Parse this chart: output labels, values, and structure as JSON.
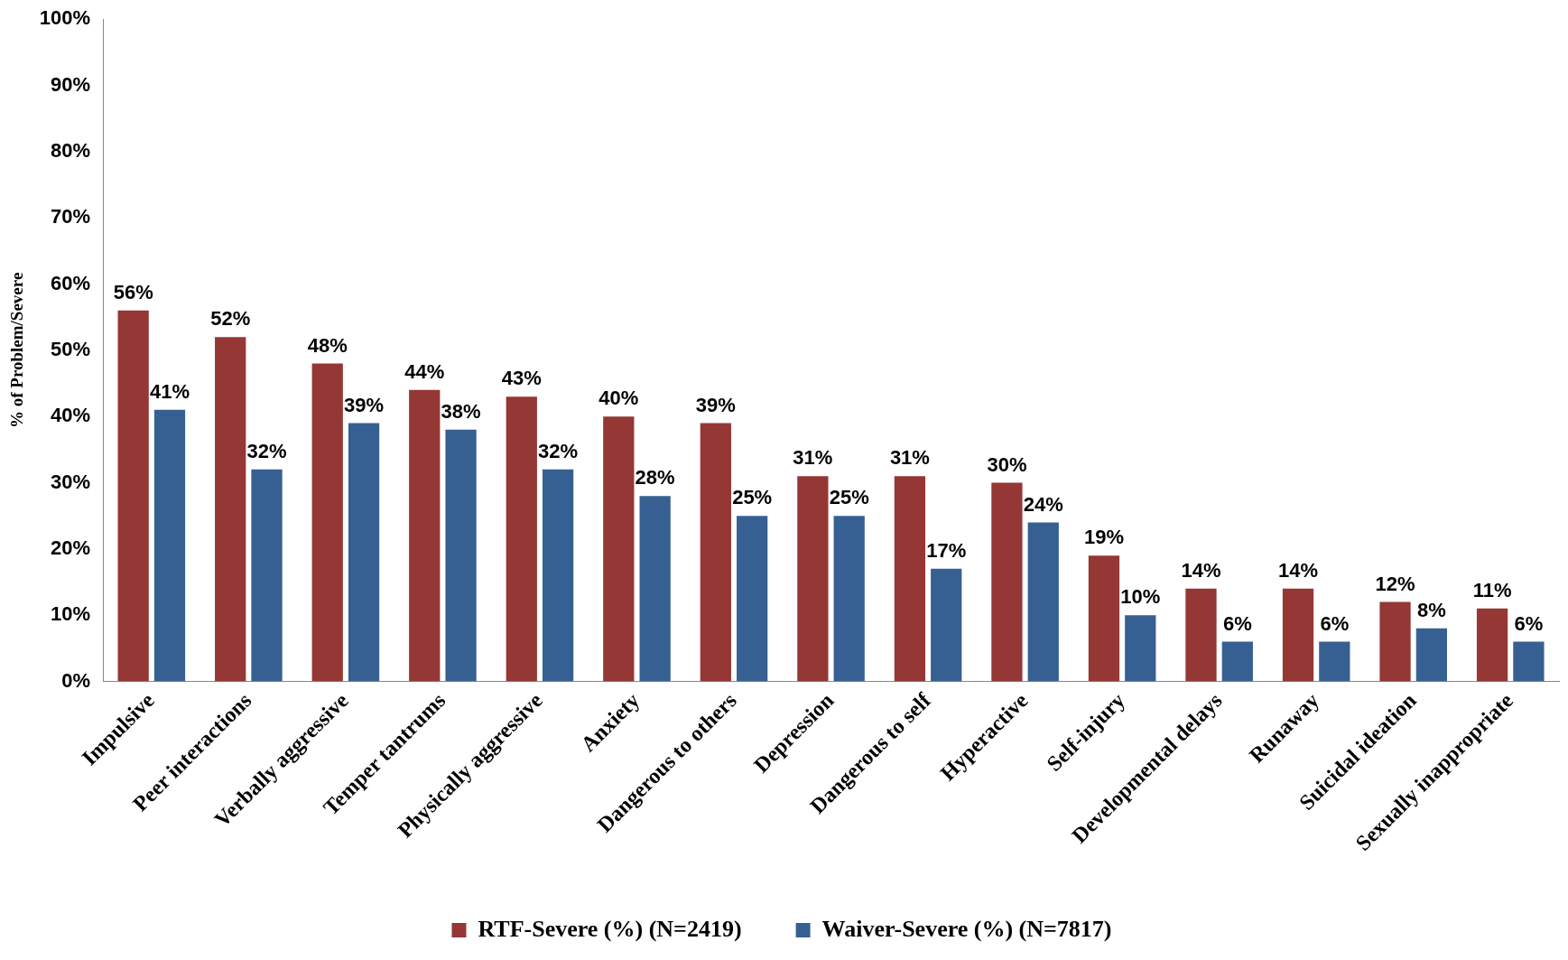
{
  "chart_data": {
    "type": "bar",
    "ylabel": "% of Problem/Severe",
    "categories": [
      "Impulsive",
      "Peer interactions",
      "Verbally aggressive",
      "Temper tantrums",
      "Physically aggressive",
      "Anxiety",
      "Dangerous to others",
      "Depression",
      "Dangerous to self",
      "Hyperactive",
      "Self-injury",
      "Developmental delays",
      "Runaway",
      "Suicidal ideation",
      "Sexually inappropriate"
    ],
    "series": [
      {
        "name": "RTF-Severe (%) (N=2419)",
        "color": "#953735",
        "values": [
          56,
          52,
          48,
          44,
          43,
          40,
          39,
          31,
          31,
          30,
          19,
          14,
          14,
          12,
          11
        ],
        "value_labels": [
          "56%",
          "52%",
          "48%",
          "44%",
          "43%",
          "40%",
          "39%",
          "31%",
          "31%",
          "30%",
          "19%",
          "14%",
          "14%",
          "12%",
          "11%"
        ]
      },
      {
        "name": "Waiver-Severe (%) (N=7817)",
        "color": "#376092",
        "values": [
          41,
          32,
          39,
          38,
          32,
          28,
          25,
          25,
          17,
          24,
          10,
          6,
          6,
          8,
          6
        ],
        "value_labels": [
          "41%",
          "32%",
          "39%",
          "38%",
          "32%",
          "28%",
          "25%",
          "25%",
          "17%",
          "24%",
          "10%",
          "6%",
          "6%",
          "8%",
          "6%"
        ]
      }
    ],
    "ylim": [
      0,
      100
    ],
    "yticks": [
      {
        "value": 0,
        "label": "0%"
      },
      {
        "value": 10,
        "label": "10%"
      },
      {
        "value": 20,
        "label": "20%"
      },
      {
        "value": 30,
        "label": "30%"
      },
      {
        "value": 40,
        "label": "40%"
      },
      {
        "value": 50,
        "label": "50%"
      },
      {
        "value": 60,
        "label": "60%"
      },
      {
        "value": 70,
        "label": "70%"
      },
      {
        "value": 80,
        "label": "80%"
      },
      {
        "value": 90,
        "label": "90%"
      },
      {
        "value": 100,
        "label": "100%"
      }
    ],
    "grid": false,
    "legend": "bottom"
  }
}
